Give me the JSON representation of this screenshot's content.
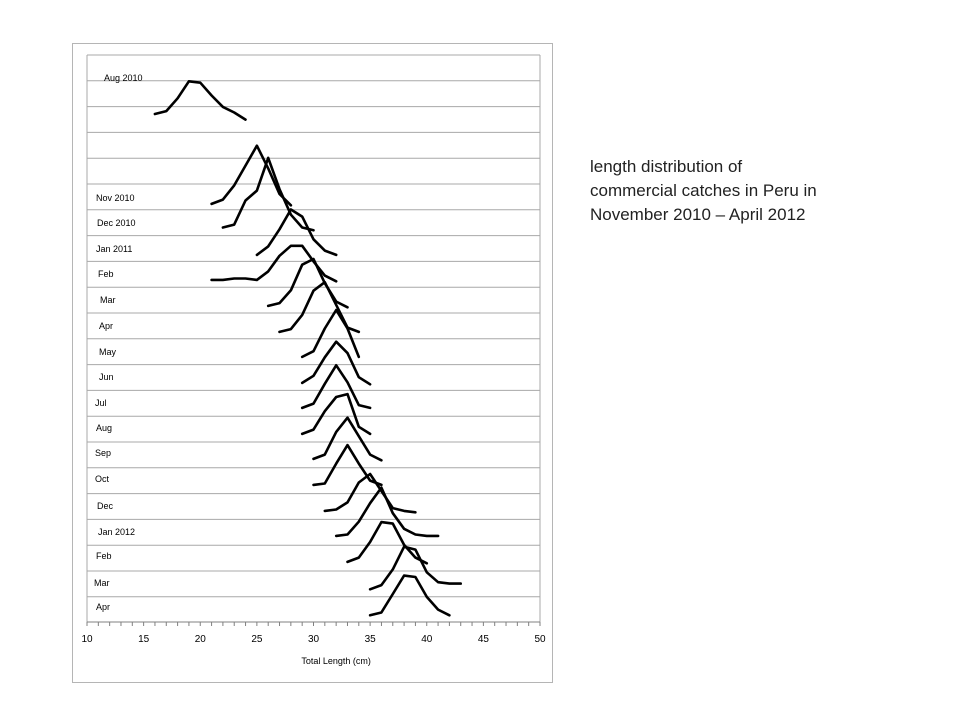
{
  "caption": {
    "line1": "length distribution of",
    "line2": "commercial catches in Peru in",
    "line3": "November 2010 – April 2012"
  },
  "chart_data": {
    "type": "line",
    "title": "",
    "xlabel": "Total Length (cm)",
    "ylabel": "",
    "xlim": [
      10,
      50
    ],
    "x_ticks": [
      10,
      15,
      20,
      25,
      30,
      35,
      40,
      45,
      50
    ],
    "grid": "horizontal",
    "legend": "none",
    "line_color": "#000000",
    "panels": [
      {
        "label": "Aug 2010",
        "points": [
          [
            16,
            1.2
          ],
          [
            17,
            1.4
          ],
          [
            18,
            2.3
          ],
          [
            19,
            3.5
          ],
          [
            20,
            3.4
          ],
          [
            21,
            2.5
          ],
          [
            22,
            1.7
          ],
          [
            23,
            1.3
          ],
          [
            24,
            0.8
          ]
        ]
      },
      {
        "label": "Nov 2010",
        "points": [
          [
            21,
            0.5
          ],
          [
            22,
            0.8
          ],
          [
            23,
            1.8
          ],
          [
            24,
            3.2
          ],
          [
            25,
            4.6
          ],
          [
            26,
            3.0
          ],
          [
            27,
            1.2
          ],
          [
            28,
            0.4
          ]
        ]
      },
      {
        "label": "Dec 2010",
        "points": [
          [
            22,
            0.6
          ],
          [
            23,
            0.8
          ],
          [
            24,
            2.5
          ],
          [
            25,
            3.2
          ],
          [
            26,
            5.5
          ],
          [
            27,
            3.3
          ],
          [
            28,
            1.5
          ],
          [
            29,
            0.6
          ],
          [
            30,
            0.4
          ]
        ]
      },
      {
        "label": "Jan  2011",
        "points": [
          [
            25,
            0.5
          ],
          [
            26,
            1.1
          ],
          [
            27,
            2.3
          ],
          [
            28,
            3.7
          ],
          [
            29,
            3.2
          ],
          [
            30,
            1.6
          ],
          [
            31,
            0.8
          ],
          [
            32,
            0.5
          ]
        ]
      },
      {
        "label": "Feb",
        "points": [
          [
            21,
            0.5
          ],
          [
            22,
            0.5
          ],
          [
            23,
            0.6
          ],
          [
            24,
            0.6
          ],
          [
            25,
            0.5
          ],
          [
            26,
            1.1
          ],
          [
            27,
            2.2
          ],
          [
            28,
            2.9
          ],
          [
            29,
            2.9
          ],
          [
            30,
            1.8
          ],
          [
            31,
            0.8
          ],
          [
            32,
            0.4
          ]
        ]
      },
      {
        "label": "Mar",
        "points": [
          [
            26,
            0.5
          ],
          [
            27,
            0.7
          ],
          [
            28,
            1.6
          ],
          [
            29,
            3.4
          ],
          [
            30,
            3.8
          ],
          [
            31,
            2.1
          ],
          [
            32,
            0.8
          ],
          [
            33,
            0.4
          ]
        ]
      },
      {
        "label": "Apr",
        "points": [
          [
            27,
            0.5
          ],
          [
            28,
            0.7
          ],
          [
            29,
            1.7
          ],
          [
            30,
            3.4
          ],
          [
            31,
            4.0
          ],
          [
            32,
            2.4
          ],
          [
            33,
            0.8
          ],
          [
            34,
            0.5
          ]
        ]
      },
      {
        "label": "May",
        "points": [
          [
            29,
            0.5
          ],
          [
            30,
            0.9
          ],
          [
            31,
            2.5
          ],
          [
            32,
            3.8
          ],
          [
            33,
            2.5
          ],
          [
            34,
            0.5
          ]
        ]
      },
      {
        "label": "Jun",
        "points": [
          [
            29,
            0.5
          ],
          [
            30,
            1.0
          ],
          [
            31,
            2.3
          ],
          [
            32,
            3.4
          ],
          [
            33,
            2.6
          ],
          [
            34,
            0.9
          ],
          [
            35,
            0.4
          ]
        ]
      },
      {
        "label": "Jul",
        "points": [
          [
            29,
            0.5
          ],
          [
            30,
            0.8
          ],
          [
            31,
            2.2
          ],
          [
            32,
            3.5
          ],
          [
            33,
            2.3
          ],
          [
            34,
            0.7
          ],
          [
            35,
            0.5
          ]
        ]
      },
      {
        "label": "Aug",
        "points": [
          [
            29,
            0.5
          ],
          [
            30,
            0.8
          ],
          [
            31,
            2.1
          ],
          [
            32,
            3.1
          ],
          [
            33,
            3.3
          ],
          [
            34,
            1.0
          ],
          [
            35,
            0.5
          ]
        ]
      },
      {
        "label": "Sep",
        "points": [
          [
            30,
            0.5
          ],
          [
            31,
            0.8
          ],
          [
            32,
            2.4
          ],
          [
            33,
            3.4
          ],
          [
            34,
            2.1
          ],
          [
            35,
            0.8
          ],
          [
            36,
            0.4
          ]
        ]
      },
      {
        "label": "Oct",
        "points": [
          [
            30,
            0.5
          ],
          [
            31,
            0.6
          ],
          [
            32,
            2.0
          ],
          [
            33,
            3.3
          ],
          [
            34,
            2.0
          ],
          [
            35,
            0.8
          ],
          [
            36,
            0.5
          ]
        ]
      },
      {
        "label": "Dec",
        "points": [
          [
            31,
            0.5
          ],
          [
            32,
            0.6
          ],
          [
            33,
            1.1
          ],
          [
            34,
            2.5
          ],
          [
            35,
            3.1
          ],
          [
            36,
            1.9
          ],
          [
            37,
            0.7
          ],
          [
            38,
            0.5
          ],
          [
            39,
            0.4
          ]
        ]
      },
      {
        "label": "Jan 2012",
        "points": [
          [
            32,
            0.5
          ],
          [
            33,
            0.6
          ],
          [
            34,
            1.5
          ],
          [
            35,
            2.8
          ],
          [
            36,
            3.9
          ],
          [
            37,
            2.1
          ],
          [
            38,
            1.0
          ],
          [
            39,
            0.6
          ],
          [
            40,
            0.5
          ],
          [
            41,
            0.5
          ]
        ]
      },
      {
        "label": "Feb",
        "points": [
          [
            33,
            0.5
          ],
          [
            34,
            0.8
          ],
          [
            35,
            1.9
          ],
          [
            36,
            3.3
          ],
          [
            37,
            3.2
          ],
          [
            38,
            1.7
          ],
          [
            39,
            0.8
          ],
          [
            40,
            0.4
          ]
        ]
      },
      {
        "label": "Mar",
        "points": [
          [
            35,
            0.4
          ],
          [
            36,
            0.7
          ],
          [
            37,
            1.8
          ],
          [
            38,
            3.4
          ],
          [
            39,
            3.2
          ],
          [
            40,
            1.6
          ],
          [
            41,
            0.9
          ],
          [
            42,
            0.8
          ],
          [
            43,
            0.8
          ]
        ]
      },
      {
        "label": "Apr",
        "points": [
          [
            35,
            0.4
          ],
          [
            36,
            0.6
          ],
          [
            37,
            1.9
          ],
          [
            38,
            3.2
          ],
          [
            39,
            3.1
          ],
          [
            40,
            1.7
          ],
          [
            41,
            0.8
          ],
          [
            42,
            0.4
          ]
        ]
      }
    ]
  }
}
